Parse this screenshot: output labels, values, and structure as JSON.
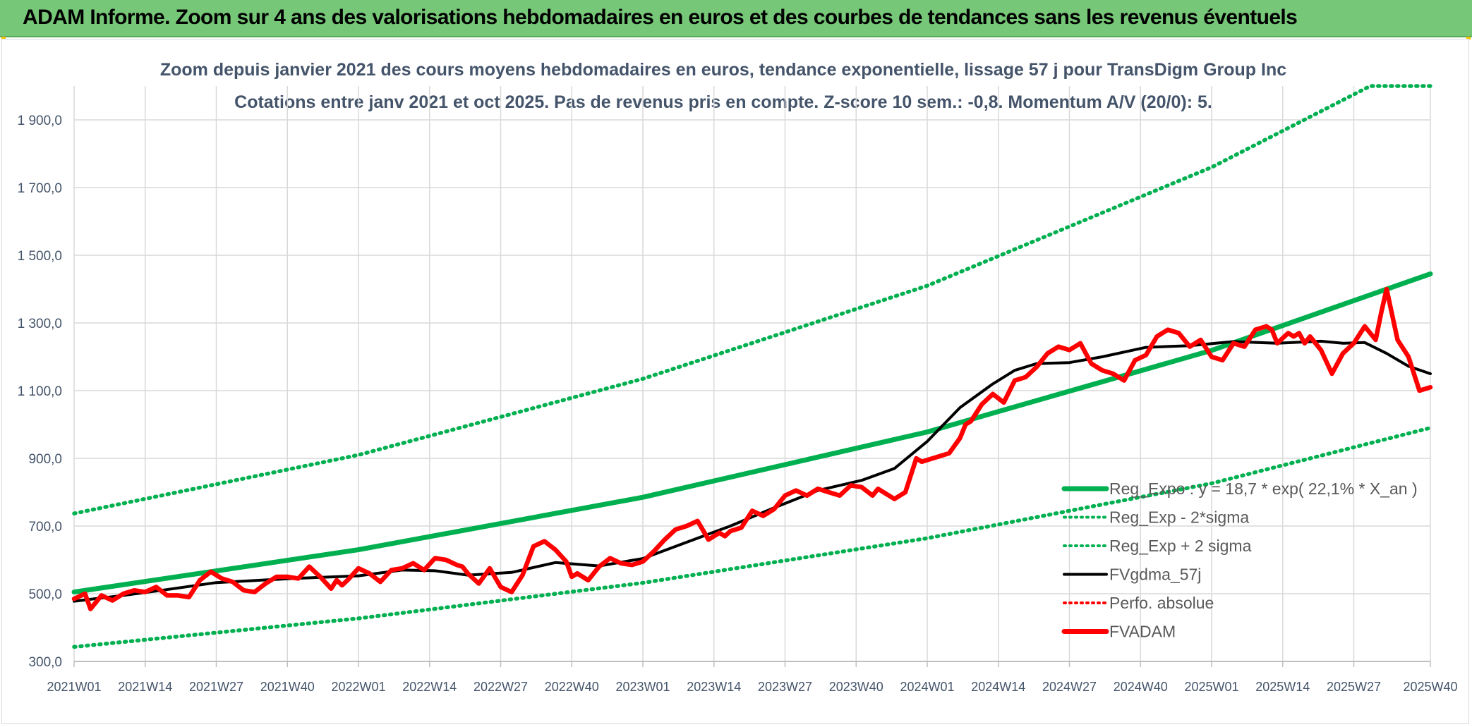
{
  "header": {
    "title": "ADAM Informe. Zoom sur 4 ans des valorisations hebdomadaires en euros et des courbes de tendances sans les revenus éventuels"
  },
  "chart_data": {
    "type": "line",
    "title_line1": "Zoom depuis janvier 2021 des cours moyens hebdomadaires en euros, tendance exponentielle, lissage 57 j pour TransDigm Group Inc",
    "title_line2": "Cotations entre janv 2021 et oct 2025. Pas de revenus pris en compte. Z-score 10 sem.: -0,8. Momentum A/V (20/0): 5.",
    "ylim": [
      300,
      2000
    ],
    "y_ticks": [
      300,
      500,
      700,
      900,
      1100,
      1300,
      1500,
      1700,
      1900
    ],
    "y_tick_labels": [
      "300,0",
      "500,0",
      "700,0",
      "900,0",
      "1 100,0",
      "1 300,0",
      "1 500,0",
      "1 700,0",
      "1 900,0"
    ],
    "x_tick_labels": [
      "2021W01",
      "2021W14",
      "2021W27",
      "2021W40",
      "2022W01",
      "2022W14",
      "2022W27",
      "2022W40",
      "2023W01",
      "2023W14",
      "2023W27",
      "2023W40",
      "2024W01",
      "2024W14",
      "2024W27",
      "2024W40",
      "2025W01",
      "2025W14",
      "2025W27",
      "2025W40"
    ],
    "x_range_weeks": [
      0,
      248
    ],
    "legend": [
      {
        "label": "Reg_Expo : y = 18,7 * exp( 22,1% *  X_an )",
        "color": "#00b050",
        "style": "solid-thick"
      },
      {
        "label": "Reg_Exp - 2*sigma",
        "color": "#00b050",
        "style": "dotted"
      },
      {
        "label": "Reg_Exp + 2 sigma",
        "color": "#00b050",
        "style": "dotted"
      },
      {
        "label": "FVgdma_57j",
        "color": "#000000",
        "style": "solid"
      },
      {
        "label": "Perfo. absolue",
        "color": "#ff0000",
        "style": "dotted"
      },
      {
        "label": "FVADAM",
        "color": "#ff0000",
        "style": "solid-thick"
      }
    ],
    "series": [
      {
        "name": "Reg_Expo",
        "x": [
          0,
          52,
          104,
          156,
          208,
          248
        ],
        "values": [
          505,
          630,
          785,
          978,
          1219,
          1445
        ]
      },
      {
        "name": "Reg_Exp + 2 sigma",
        "x": [
          0,
          52,
          104,
          156,
          208,
          237,
          248
        ],
        "values": [
          737,
          910,
          1135,
          1410,
          1760,
          2000,
          2000
        ]
      },
      {
        "name": "Reg_Exp - 2*sigma",
        "x": [
          0,
          52,
          104,
          156,
          208,
          248
        ],
        "values": [
          343,
          427,
          532,
          664,
          826,
          990
        ]
      },
      {
        "name": "FVgdma_57j",
        "x": [
          0,
          8,
          16,
          26,
          40,
          52,
          60,
          66,
          72,
          80,
          88,
          96,
          104,
          112,
          120,
          128,
          136,
          144,
          150,
          156,
          162,
          168,
          172,
          176,
          182,
          188,
          196,
          204,
          212,
          220,
          228,
          232,
          236,
          240,
          244,
          248
        ],
        "values": [
          478,
          493,
          510,
          533,
          545,
          553,
          570,
          568,
          555,
          563,
          592,
          582,
          604,
          652,
          700,
          754,
          805,
          835,
          870,
          950,
          1050,
          1120,
          1160,
          1180,
          1183,
          1200,
          1228,
          1233,
          1245,
          1240,
          1246,
          1240,
          1242,
          1210,
          1172,
          1150
        ]
      },
      {
        "name": "FVADAM",
        "x": [
          0,
          2,
          3,
          5,
          7,
          9,
          11,
          13,
          15,
          17,
          19,
          21,
          23,
          25,
          27,
          29,
          31,
          33,
          35,
          37,
          39,
          41,
          43,
          45,
          47,
          48,
          49,
          50,
          52,
          54,
          56,
          58,
          60,
          62,
          64,
          66,
          68,
          70,
          71,
          72,
          74,
          76,
          78,
          80,
          82,
          84,
          86,
          88,
          90,
          91,
          92,
          94,
          96,
          98,
          100,
          102,
          104,
          106,
          108,
          110,
          112,
          114,
          116,
          118,
          119,
          120,
          122,
          124,
          126,
          128,
          130,
          132,
          134,
          136,
          138,
          140,
          142,
          144,
          146,
          147,
          148,
          150,
          152,
          154,
          155,
          156,
          158,
          160,
          162,
          163,
          164,
          166,
          168,
          170,
          172,
          174,
          176,
          178,
          180,
          182,
          184,
          186,
          188,
          190,
          192,
          194,
          196,
          198,
          200,
          202,
          204,
          206,
          208,
          210,
          212,
          214,
          216,
          218,
          219,
          220,
          222,
          223,
          224,
          225,
          226,
          228,
          230,
          232,
          234,
          236,
          238,
          239,
          240,
          242,
          244,
          246,
          248
        ],
        "values": [
          485,
          500,
          455,
          495,
          480,
          500,
          510,
          505,
          520,
          495,
          495,
          490,
          540,
          565,
          545,
          535,
          510,
          505,
          530,
          550,
          550,
          545,
          580,
          550,
          515,
          540,
          525,
          540,
          575,
          560,
          535,
          570,
          575,
          590,
          570,
          605,
          600,
          585,
          580,
          560,
          530,
          575,
          520,
          505,
          555,
          640,
          655,
          630,
          595,
          550,
          560,
          540,
          580,
          605,
          590,
          585,
          595,
          625,
          660,
          690,
          700,
          715,
          660,
          680,
          670,
          685,
          695,
          745,
          730,
          750,
          790,
          805,
          790,
          810,
          800,
          790,
          820,
          815,
          790,
          810,
          800,
          780,
          800,
          900,
          890,
          895,
          905,
          915,
          960,
          1000,
          1010,
          1060,
          1090,
          1065,
          1130,
          1140,
          1170,
          1210,
          1230,
          1220,
          1240,
          1180,
          1160,
          1150,
          1130,
          1190,
          1205,
          1260,
          1280,
          1270,
          1230,
          1250,
          1200,
          1190,
          1240,
          1230,
          1280,
          1290,
          1280,
          1240,
          1270,
          1260,
          1270,
          1240,
          1260,
          1220,
          1150,
          1210,
          1240,
          1290,
          1250,
          1330,
          1400,
          1250,
          1200,
          1100,
          1110
        ]
      }
    ]
  }
}
